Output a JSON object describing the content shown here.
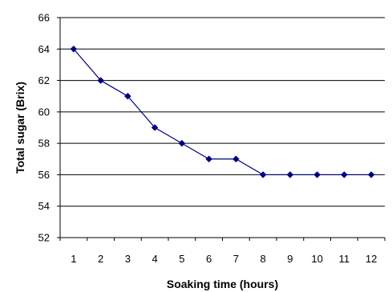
{
  "chart_data": {
    "type": "line",
    "title": "",
    "xlabel": "Soaking time (hours)",
    "ylabel": "Total sugar (Brix)",
    "x": [
      1,
      2,
      3,
      4,
      5,
      6,
      7,
      8,
      9,
      10,
      11,
      12
    ],
    "series": [
      {
        "values": [
          64,
          62,
          61,
          59,
          58,
          57,
          57,
          56,
          56,
          56,
          56,
          56
        ],
        "color": "#000080",
        "marker": "diamond"
      }
    ],
    "xlim": [
      0.5,
      12.5
    ],
    "ylim": [
      52,
      66
    ],
    "yticks": [
      52,
      54,
      56,
      58,
      60,
      62,
      64,
      66
    ],
    "xticks": [
      1,
      2,
      3,
      4,
      5,
      6,
      7,
      8,
      9,
      10,
      11,
      12
    ],
    "grid": "horizontal",
    "legend": "none"
  }
}
